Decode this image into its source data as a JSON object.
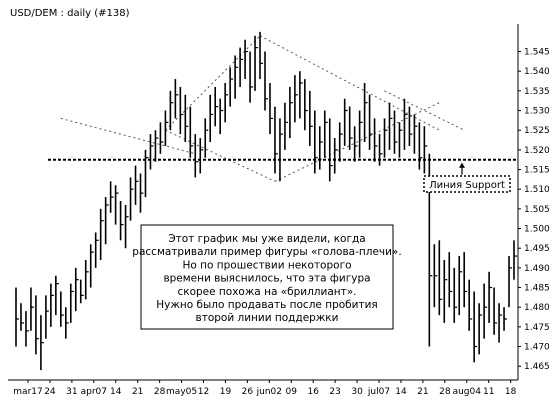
{
  "chart_data": {
    "type": "ohlc",
    "title": "USD/DEM : daily  (#138)",
    "xlabel": "",
    "ylabel": "",
    "ylim": [
      1.462,
      1.552
    ],
    "yticks": [
      "1.545",
      "1.540",
      "1.535",
      "1.530",
      "1.525",
      "1.520",
      "1.515",
      "1.510",
      "1.505",
      "1.500",
      "1.495",
      "1.490",
      "1.485",
      "1.480",
      "1.475",
      "1.470",
      "1.465"
    ],
    "xticks": [
      "mar17",
      "24",
      "31",
      "apr07",
      "14",
      "21",
      "28",
      "may05",
      "12",
      "19",
      "26",
      "jun02",
      "09",
      "16",
      "23",
      "30",
      "jul07",
      "14",
      "21",
      "28",
      "aug04",
      "11",
      "18"
    ],
    "grid": false,
    "bars": [
      {
        "x": 0,
        "h": 1.485,
        "l": 1.47,
        "c": 1.477
      },
      {
        "x": 1,
        "h": 1.481,
        "l": 1.474,
        "c": 1.476
      },
      {
        "x": 2,
        "h": 1.479,
        "l": 1.47,
        "c": 1.474
      },
      {
        "x": 3,
        "h": 1.485,
        "l": 1.474,
        "c": 1.48
      },
      {
        "x": 4,
        "h": 1.483,
        "l": 1.468,
        "c": 1.472
      },
      {
        "x": 5,
        "h": 1.478,
        "l": 1.464,
        "c": 1.471
      },
      {
        "x": 6,
        "h": 1.483,
        "l": 1.472,
        "c": 1.479
      },
      {
        "x": 7,
        "h": 1.486,
        "l": 1.475,
        "c": 1.483
      },
      {
        "x": 8,
        "h": 1.488,
        "l": 1.478,
        "c": 1.486
      },
      {
        "x": 9,
        "h": 1.484,
        "l": 1.475,
        "c": 1.478
      },
      {
        "x": 10,
        "h": 1.48,
        "l": 1.472,
        "c": 1.476
      },
      {
        "x": 11,
        "h": 1.486,
        "l": 1.476,
        "c": 1.484
      },
      {
        "x": 12,
        "h": 1.49,
        "l": 1.479,
        "c": 1.487
      },
      {
        "x": 13,
        "h": 1.487,
        "l": 1.481,
        "c": 1.483
      },
      {
        "x": 14,
        "h": 1.492,
        "l": 1.482,
        "c": 1.489
      },
      {
        "x": 15,
        "h": 1.496,
        "l": 1.485,
        "c": 1.494
      },
      {
        "x": 16,
        "h": 1.499,
        "l": 1.49,
        "c": 1.497
      },
      {
        "x": 17,
        "h": 1.505,
        "l": 1.492,
        "c": 1.502
      },
      {
        "x": 18,
        "h": 1.508,
        "l": 1.496,
        "c": 1.506
      },
      {
        "x": 19,
        "h": 1.512,
        "l": 1.504,
        "c": 1.508
      },
      {
        "x": 20,
        "h": 1.511,
        "l": 1.501,
        "c": 1.509
      },
      {
        "x": 21,
        "h": 1.507,
        "l": 1.497,
        "c": 1.501
      },
      {
        "x": 22,
        "h": 1.506,
        "l": 1.495,
        "c": 1.503
      },
      {
        "x": 23,
        "h": 1.513,
        "l": 1.502,
        "c": 1.51
      },
      {
        "x": 24,
        "h": 1.516,
        "l": 1.506,
        "c": 1.512
      },
      {
        "x": 25,
        "h": 1.514,
        "l": 1.504,
        "c": 1.509
      },
      {
        "x": 26,
        "h": 1.52,
        "l": 1.508,
        "c": 1.518
      },
      {
        "x": 27,
        "h": 1.524,
        "l": 1.515,
        "c": 1.521
      },
      {
        "x": 28,
        "h": 1.525,
        "l": 1.517,
        "c": 1.523
      },
      {
        "x": 29,
        "h": 1.527,
        "l": 1.519,
        "c": 1.522
      },
      {
        "x": 30,
        "h": 1.53,
        "l": 1.521,
        "c": 1.527
      },
      {
        "x": 31,
        "h": 1.535,
        "l": 1.525,
        "c": 1.532
      },
      {
        "x": 32,
        "h": 1.538,
        "l": 1.528,
        "c": 1.534
      },
      {
        "x": 33,
        "h": 1.536,
        "l": 1.524,
        "c": 1.529
      },
      {
        "x": 34,
        "h": 1.534,
        "l": 1.522,
        "c": 1.526
      },
      {
        "x": 35,
        "h": 1.531,
        "l": 1.518,
        "c": 1.521
      },
      {
        "x": 36,
        "h": 1.524,
        "l": 1.513,
        "c": 1.517
      },
      {
        "x": 37,
        "h": 1.523,
        "l": 1.514,
        "c": 1.52
      },
      {
        "x": 38,
        "h": 1.528,
        "l": 1.518,
        "c": 1.525
      },
      {
        "x": 39,
        "h": 1.534,
        "l": 1.522,
        "c": 1.529
      },
      {
        "x": 40,
        "h": 1.536,
        "l": 1.526,
        "c": 1.531
      },
      {
        "x": 41,
        "h": 1.533,
        "l": 1.524,
        "c": 1.53
      },
      {
        "x": 42,
        "h": 1.537,
        "l": 1.527,
        "c": 1.534
      },
      {
        "x": 43,
        "h": 1.541,
        "l": 1.531,
        "c": 1.538
      },
      {
        "x": 44,
        "h": 1.544,
        "l": 1.533,
        "c": 1.541
      },
      {
        "x": 45,
        "h": 1.546,
        "l": 1.536,
        "c": 1.543
      },
      {
        "x": 46,
        "h": 1.548,
        "l": 1.538,
        "c": 1.545
      },
      {
        "x": 47,
        "h": 1.545,
        "l": 1.532,
        "c": 1.536
      },
      {
        "x": 48,
        "h": 1.549,
        "l": 1.535,
        "c": 1.546
      },
      {
        "x": 49,
        "h": 1.55,
        "l": 1.538,
        "c": 1.542
      },
      {
        "x": 50,
        "h": 1.545,
        "l": 1.53,
        "c": 1.533
      },
      {
        "x": 51,
        "h": 1.537,
        "l": 1.524,
        "c": 1.528
      },
      {
        "x": 52,
        "h": 1.531,
        "l": 1.514,
        "c": 1.519
      },
      {
        "x": 53,
        "h": 1.528,
        "l": 1.512,
        "c": 1.524
      },
      {
        "x": 54,
        "h": 1.532,
        "l": 1.52,
        "c": 1.527
      },
      {
        "x": 55,
        "h": 1.536,
        "l": 1.523,
        "c": 1.532
      },
      {
        "x": 56,
        "h": 1.539,
        "l": 1.527,
        "c": 1.534
      },
      {
        "x": 57,
        "h": 1.54,
        "l": 1.528,
        "c": 1.537
      },
      {
        "x": 58,
        "h": 1.538,
        "l": 1.525,
        "c": 1.53
      },
      {
        "x": 59,
        "h": 1.535,
        "l": 1.521,
        "c": 1.526
      },
      {
        "x": 60,
        "h": 1.53,
        "l": 1.514,
        "c": 1.518
      },
      {
        "x": 61,
        "h": 1.526,
        "l": 1.515,
        "c": 1.522
      },
      {
        "x": 62,
        "h": 1.53,
        "l": 1.518,
        "c": 1.527
      },
      {
        "x": 63,
        "h": 1.528,
        "l": 1.512,
        "c": 1.516
      },
      {
        "x": 64,
        "h": 1.523,
        "l": 1.514,
        "c": 1.52
      },
      {
        "x": 65,
        "h": 1.527,
        "l": 1.517,
        "c": 1.524
      },
      {
        "x": 66,
        "h": 1.533,
        "l": 1.521,
        "c": 1.53
      },
      {
        "x": 67,
        "h": 1.531,
        "l": 1.52,
        "c": 1.523
      },
      {
        "x": 68,
        "h": 1.526,
        "l": 1.517,
        "c": 1.521
      },
      {
        "x": 69,
        "h": 1.53,
        "l": 1.518,
        "c": 1.527
      },
      {
        "x": 70,
        "h": 1.537,
        "l": 1.522,
        "c": 1.532
      },
      {
        "x": 71,
        "h": 1.534,
        "l": 1.52,
        "c": 1.524
      },
      {
        "x": 72,
        "h": 1.528,
        "l": 1.517,
        "c": 1.521
      },
      {
        "x": 73,
        "h": 1.524,
        "l": 1.516,
        "c": 1.519
      },
      {
        "x": 74,
        "h": 1.528,
        "l": 1.518,
        "c": 1.525
      },
      {
        "x": 75,
        "h": 1.532,
        "l": 1.52,
        "c": 1.528
      },
      {
        "x": 76,
        "h": 1.53,
        "l": 1.519,
        "c": 1.522
      },
      {
        "x": 77,
        "h": 1.527,
        "l": 1.518,
        "c": 1.525
      },
      {
        "x": 78,
        "h": 1.533,
        "l": 1.52,
        "c": 1.529
      },
      {
        "x": 79,
        "h": 1.531,
        "l": 1.521,
        "c": 1.524
      },
      {
        "x": 80,
        "h": 1.529,
        "l": 1.519,
        "c": 1.526
      },
      {
        "x": 81,
        "h": 1.527,
        "l": 1.515,
        "c": 1.518
      },
      {
        "x": 82,
        "h": 1.526,
        "l": 1.514,
        "c": 1.521
      },
      {
        "x": 83,
        "h": 1.519,
        "l": 1.47,
        "c": 1.488
      },
      {
        "x": 84,
        "h": 1.496,
        "l": 1.48,
        "c": 1.488
      },
      {
        "x": 85,
        "h": 1.497,
        "l": 1.478,
        "c": 1.482
      },
      {
        "x": 86,
        "h": 1.492,
        "l": 1.476,
        "c": 1.487
      },
      {
        "x": 87,
        "h": 1.494,
        "l": 1.48,
        "c": 1.484
      },
      {
        "x": 88,
        "h": 1.49,
        "l": 1.476,
        "c": 1.48
      },
      {
        "x": 89,
        "h": 1.493,
        "l": 1.478,
        "c": 1.489
      },
      {
        "x": 90,
        "h": 1.494,
        "l": 1.48,
        "c": 1.484
      },
      {
        "x": 91,
        "h": 1.487,
        "l": 1.474,
        "c": 1.477
      },
      {
        "x": 92,
        "h": 1.484,
        "l": 1.466,
        "c": 1.47
      },
      {
        "x": 93,
        "h": 1.481,
        "l": 1.468,
        "c": 1.478
      },
      {
        "x": 94,
        "h": 1.486,
        "l": 1.472,
        "c": 1.48
      },
      {
        "x": 95,
        "h": 1.489,
        "l": 1.476,
        "c": 1.485
      },
      {
        "x": 96,
        "h": 1.485,
        "l": 1.473,
        "c": 1.476
      },
      {
        "x": 97,
        "h": 1.481,
        "l": 1.471,
        "c": 1.478
      },
      {
        "x": 98,
        "h": 1.48,
        "l": 1.474,
        "c": 1.477
      },
      {
        "x": 99,
        "h": 1.493,
        "l": 1.48,
        "c": 1.49
      },
      {
        "x": 100,
        "h": 1.497,
        "l": 1.487,
        "c": 1.493
      }
    ],
    "pattern_lines": [
      {
        "name": "diamond-upper-left",
        "x1": 30,
        "y1": 1.525,
        "x2": 49,
        "y2": 1.549
      },
      {
        "name": "diamond-upper-right",
        "x1": 49,
        "y1": 1.549,
        "x2": 85,
        "y2": 1.525
      },
      {
        "name": "diamond-lower-left",
        "x1": 30,
        "y1": 1.525,
        "x2": 52,
        "y2": 1.512
      },
      {
        "name": "diamond-lower-right",
        "x1": 52,
        "y1": 1.512,
        "x2": 85,
        "y2": 1.532
      },
      {
        "name": "shoulder-line-left",
        "x1": 9,
        "y1": 1.528,
        "x2": 36,
        "y2": 1.519
      },
      {
        "name": "shoulder-line-right",
        "x1": 74,
        "y1": 1.535,
        "x2": 90,
        "y2": 1.525
      }
    ],
    "support": {
      "level": 1.5175,
      "label": "Линия Support"
    },
    "annotation": [
      "Этот график мы уже видели, когда",
      "рассматривали пример фигуры «голова-плечи».",
      "Но по прошествии некоторого",
      "времени выяснилось, что эта фигура",
      "скорее похожа на «бриллиант».",
      "Нужно было продавать после пробития",
      "второй линии поддержки"
    ]
  }
}
